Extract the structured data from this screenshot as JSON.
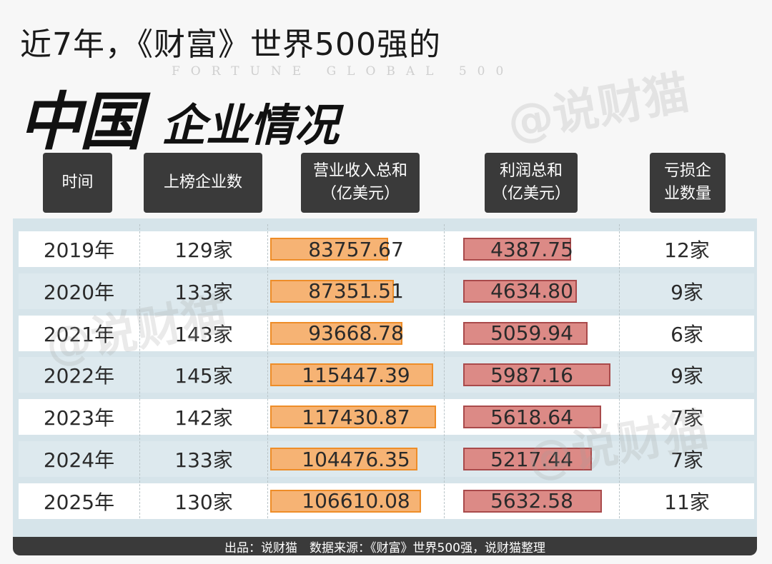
{
  "title": {
    "line1": "近7年，《财富》世界500强的",
    "subtitle_en": "FORTUNE GLOBAL 500",
    "big": "中国",
    "small": "企业情况"
  },
  "watermark": "@说财猫",
  "headers": {
    "year": "时间",
    "count": "上榜企业数",
    "revenue_l1": "营业收入总和",
    "revenue_l2": "（亿美元）",
    "profit_l1": "利润总和",
    "profit_l2": "（亿美元）",
    "loss_l1": "亏损企",
    "loss_l2": "业数量"
  },
  "rows": [
    {
      "year": "2019年",
      "count": "129家",
      "revenue": "83757.67",
      "profit": "4387.75",
      "loss": "12家"
    },
    {
      "year": "2020年",
      "count": "133家",
      "revenue": "87351.51",
      "profit": "4634.80",
      "loss": "9家"
    },
    {
      "year": "2021年",
      "count": "143家",
      "revenue": "93668.78",
      "profit": "5059.94",
      "loss": "6家"
    },
    {
      "year": "2022年",
      "count": "145家",
      "revenue": "115447.39",
      "profit": "5987.16",
      "loss": "9家"
    },
    {
      "year": "2023年",
      "count": "142家",
      "revenue": "117430.87",
      "profit": "5618.64",
      "loss": "7家"
    },
    {
      "year": "2024年",
      "count": "133家",
      "revenue": "104476.35",
      "profit": "5217.44",
      "loss": "7家"
    },
    {
      "year": "2025年",
      "count": "130家",
      "revenue": "106610.08",
      "profit": "5632.58",
      "loss": "11家"
    }
  ],
  "footer": "出品：说财猫　数据来源：《财富》世界500强，说财猫整理",
  "colors": {
    "revenue_fill": "#f6b374",
    "revenue_border": "#ee8d28",
    "profit_fill": "#dc8a86",
    "profit_border": "#a94a4b",
    "header_bg": "#3a3a3a"
  },
  "chart_data": {
    "type": "table",
    "columns": [
      "时间",
      "上榜企业数",
      "营业收入总和（亿美元）",
      "利润总和（亿美元）",
      "亏损企业数量"
    ],
    "categories": [
      "2019年",
      "2020年",
      "2021年",
      "2022年",
      "2023年",
      "2024年",
      "2025年"
    ],
    "series": [
      {
        "name": "上榜企业数",
        "values": [
          129,
          133,
          143,
          145,
          142,
          133,
          130
        ]
      },
      {
        "name": "营业收入总和（亿美元）",
        "values": [
          83757.67,
          87351.51,
          93668.78,
          115447.39,
          117430.87,
          104476.35,
          106610.08
        ]
      },
      {
        "name": "利润总和（亿美元）",
        "values": [
          4387.75,
          4634.8,
          5059.94,
          5987.16,
          5618.64,
          5217.44,
          5632.58
        ]
      },
      {
        "name": "亏损企业数量",
        "values": [
          12,
          9,
          6,
          9,
          7,
          7,
          11
        ]
      }
    ]
  }
}
